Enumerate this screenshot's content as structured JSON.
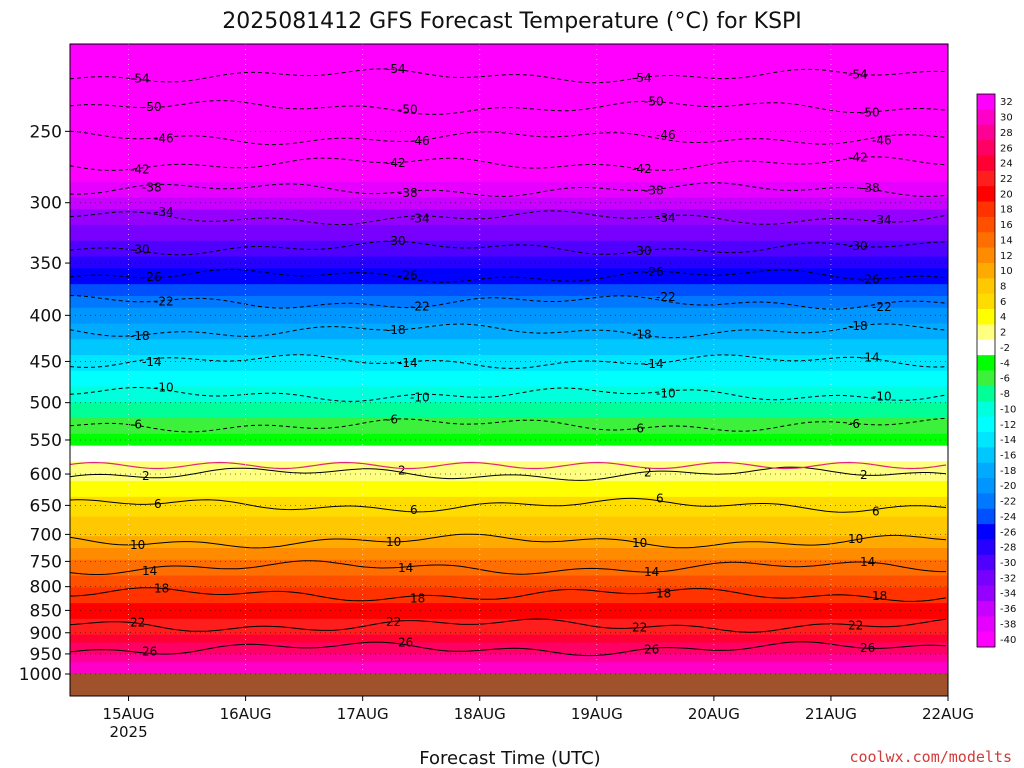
{
  "chart_data": {
    "type": "heatmap",
    "title": "2025081412 GFS Forecast Temperature (°C) for KSPI",
    "xlabel": "Forecast Time (UTC)",
    "ylabel": "",
    "y_scale": "log-pressure",
    "y_units": "hPa",
    "y_range": [
      1000,
      200
    ],
    "y_ticks": [
      "250",
      "300",
      "350",
      "400",
      "450",
      "500",
      "550",
      "600",
      "650",
      "700",
      "750",
      "800",
      "850",
      "900",
      "950",
      "1000"
    ],
    "x_range": [
      "2025-08-14T12:00Z",
      "2025-08-22T00:00Z"
    ],
    "x_ticks": [
      {
        "label": "15AUG",
        "sub": "2025",
        "time": "2025-08-15T00:00Z"
      },
      {
        "label": "16AUG",
        "sub": "",
        "time": "2025-08-16T00:00Z"
      },
      {
        "label": "17AUG",
        "sub": "",
        "time": "2025-08-17T00:00Z"
      },
      {
        "label": "18AUG",
        "sub": "",
        "time": "2025-08-18T00:00Z"
      },
      {
        "label": "19AUG",
        "sub": "",
        "time": "2025-08-19T00:00Z"
      },
      {
        "label": "20AUG",
        "sub": "",
        "time": "2025-08-20T00:00Z"
      },
      {
        "label": "21AUG",
        "sub": "",
        "time": "2025-08-21T00:00Z"
      },
      {
        "label": "22AUG",
        "sub": "",
        "time": "2025-08-22T00:00Z"
      }
    ],
    "grid": true,
    "colorbar": {
      "placement": "right",
      "labels": [
        "32",
        "30",
        "28",
        "26",
        "24",
        "22",
        "20",
        "18",
        "16",
        "14",
        "12",
        "10",
        "8",
        "6",
        "4",
        "2",
        "-2",
        "-4",
        "-6",
        "-8",
        "-10",
        "-12",
        "-14",
        "-16",
        "-18",
        "-20",
        "-22",
        "-24",
        "-26",
        "-28",
        "-30",
        "-32",
        "-34",
        "-36",
        "-38",
        "-40"
      ],
      "colors": [
        "#ff00ff",
        "#ff00c8",
        "#ff0096",
        "#ff0064",
        "#ff0032",
        "#ff1e1e",
        "#ff0000",
        "#ff3200",
        "#ff5000",
        "#ff6e00",
        "#ff8c00",
        "#ffaa00",
        "#ffc800",
        "#ffdc00",
        "#ffff00",
        "#ffff80",
        "#ffffff",
        "#00ff00",
        "#3cf03c",
        "#00ff96",
        "#00ffdc",
        "#00ffff",
        "#00e6ff",
        "#00c8ff",
        "#00aaff",
        "#0096ff",
        "#0078ff",
        "#0050ff",
        "#0000ff",
        "#2800ff",
        "#5000ff",
        "#7800ff",
        "#9600ff",
        "#c800ff",
        "#e600ff",
        "#ff00ff"
      ]
    },
    "profile": [
      {
        "p": 200,
        "t": -58
      },
      {
        "p": 250,
        "t": -47
      },
      {
        "p": 300,
        "t": -36
      },
      {
        "p": 350,
        "t": -28
      },
      {
        "p": 400,
        "t": -20
      },
      {
        "p": 450,
        "t": -14
      },
      {
        "p": 500,
        "t": -9
      },
      {
        "p": 550,
        "t": -4
      },
      {
        "p": 600,
        "t": 2
      },
      {
        "p": 650,
        "t": 6
      },
      {
        "p": 700,
        "t": 9
      },
      {
        "p": 750,
        "t": 13
      },
      {
        "p": 800,
        "t": 17
      },
      {
        "p": 850,
        "t": 20
      },
      {
        "p": 900,
        "t": 23
      },
      {
        "p": 950,
        "t": 27
      },
      {
        "p": 1000,
        "t": 31
      }
    ],
    "isotherm_labels": [
      "-54",
      "-50",
      "-46",
      "-42",
      "-38",
      "-34",
      "-30",
      "-26",
      "-22",
      "-18",
      "-14",
      "-10",
      "-6",
      "2",
      "6",
      "10",
      "14",
      "18",
      "22",
      "26"
    ],
    "credit": "coolwx.com/modelts"
  }
}
